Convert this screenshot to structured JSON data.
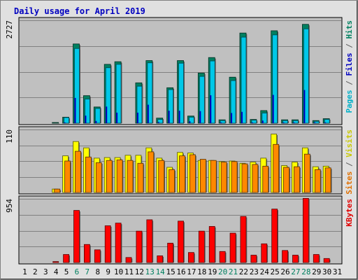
{
  "chart_data": {
    "type": "bar",
    "title": "Daily usage for April 2019",
    "days": [
      "1",
      "2",
      "3",
      "4",
      "5",
      "6",
      "7",
      "8",
      "9",
      "10",
      "11",
      "12",
      "13",
      "14",
      "15",
      "16",
      "17",
      "18",
      "19",
      "20",
      "21",
      "22",
      "23",
      "24",
      "25",
      "26",
      "27",
      "28",
      "29",
      "30",
      "31"
    ],
    "weekend_days": [
      "6",
      "7",
      "13",
      "14",
      "20",
      "21",
      "27",
      "28"
    ],
    "panels": [
      {
        "id": "hits",
        "ymax_label": "2727",
        "ymax": 2727,
        "legend": [
          {
            "text": "Pages",
            "color": "#00b0c8"
          },
          {
            "text": " / ",
            "color": "#606060"
          },
          {
            "text": "Files",
            "color": "#0000c0"
          },
          {
            "text": " / ",
            "color": "#606060"
          },
          {
            "text": "Hits",
            "color": "#008060"
          }
        ],
        "series": [
          {
            "values": [
              0,
              0,
              0,
              10,
              160,
              2100,
              730,
              430,
              1560,
              1630,
              0,
              1070,
              1660,
              135,
              940,
              1660,
              190,
              1330,
              1740,
              90,
              1220,
              2390,
              100,
              335,
              2450,
              90,
              90,
              2620,
              70,
              120,
              0
            ]
          },
          {
            "values": [
              0,
              0,
              0,
              0,
              150,
              1980,
              640,
              390,
              1470,
              1560,
              0,
              980,
              1600,
              100,
              890,
              1590,
              160,
              1240,
              1650,
              70,
              1130,
              2280,
              80,
              270,
              2340,
              70,
              70,
              2500,
              50,
              100,
              0
            ]
          },
          {
            "values": [
              0,
              0,
              0,
              0,
              20,
              670,
              200,
              60,
              440,
              280,
              0,
              280,
              490,
              30,
              330,
              330,
              50,
              320,
              740,
              20,
              270,
              300,
              20,
              70,
              750,
              20,
              20,
              880,
              20,
              20,
              0
            ]
          }
        ]
      },
      {
        "id": "visits",
        "ymax_label": "110",
        "ymax": 110,
        "legend": [
          {
            "text": "Sites",
            "color": "#e07000"
          },
          {
            "text": " / ",
            "color": "#606060"
          },
          {
            "text": "Visits",
            "color": "#c8c800"
          }
        ],
        "series": [
          {
            "values": [
              0,
              0,
              0,
              6,
              64,
              89,
              78,
              60,
              61,
              61,
              65,
              65,
              78,
              60,
              44,
              70,
              69,
              56,
              56,
              54,
              55,
              51,
              53,
              60,
              102,
              47,
              53,
              78,
              45,
              46,
              0
            ]
          },
          {
            "values": [
              0,
              0,
              0,
              6,
              55,
              72,
              62,
              52,
              56,
              57,
              56,
              51,
              71,
              56,
              40,
              64,
              66,
              58,
              56,
              53,
              54,
              50,
              49,
              46,
              84,
              44,
              45,
              67,
              40,
              43,
              0
            ]
          }
        ]
      },
      {
        "id": "kbytes",
        "ymax_label": "954",
        "ymax": 954,
        "legend": [
          {
            "text": "KBytes",
            "color": "#e00000"
          }
        ],
        "series": [
          {
            "values": [
              0,
              0,
              0,
              14,
              120,
              780,
              270,
              190,
              550,
              590,
              75,
              470,
              640,
              100,
              290,
              620,
              150,
              470,
              540,
              165,
              440,
              690,
              110,
              280,
              800,
              180,
              110,
              960,
              120,
              60,
              0
            ]
          }
        ]
      }
    ],
    "colors": {
      "hits": "#008060",
      "files": "#0000c0",
      "pages": "#00c8e8",
      "visits": "#ffff00",
      "sites": "#ff8800",
      "kbytes": "#ff0000",
      "panel_bg": "#c0c0c0",
      "page_bg": "#e0e0e0",
      "title": "#0000c0",
      "weekend_label": "#008060",
      "day_label": "#000000"
    }
  }
}
